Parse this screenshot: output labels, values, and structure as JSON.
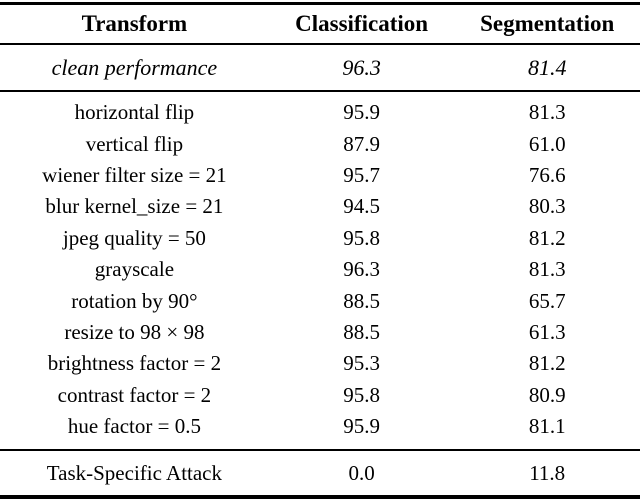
{
  "table": {
    "headers": {
      "transform": "Transform",
      "classification": "Classification",
      "segmentation": "Segmentation"
    },
    "clean_row": {
      "transform": "clean performance",
      "classification": "96.3",
      "segmentation": "81.4"
    },
    "rows": [
      {
        "transform": "horizontal flip",
        "classification": "95.9",
        "segmentation": "81.3"
      },
      {
        "transform": "vertical flip",
        "classification": "87.9",
        "segmentation": "61.0"
      },
      {
        "transform": "wiener filter size = 21",
        "classification": "95.7",
        "segmentation": "76.6"
      },
      {
        "transform": "blur kernel_size = 21",
        "classification": "94.5",
        "segmentation": "80.3"
      },
      {
        "transform": "jpeg quality = 50",
        "classification": "95.8",
        "segmentation": "81.2"
      },
      {
        "transform": "grayscale",
        "classification": "96.3",
        "segmentation": "81.3"
      },
      {
        "transform": "rotation by 90°",
        "classification": "88.5",
        "segmentation": "65.7"
      },
      {
        "transform": "resize to 98 × 98",
        "classification": "88.5",
        "segmentation": "61.3"
      },
      {
        "transform": "brightness factor = 2",
        "classification": "95.3",
        "segmentation": "81.2"
      },
      {
        "transform": "contrast factor = 2",
        "classification": "95.8",
        "segmentation": "80.9"
      },
      {
        "transform": "hue factor = 0.5",
        "classification": "95.9",
        "segmentation": "81.1"
      }
    ],
    "attack_row": {
      "transform": "Task-Specific Attack",
      "classification": "0.0",
      "segmentation": "11.8"
    }
  },
  "colors": {
    "text": "#000000",
    "background": "#ffffff",
    "rule": "#000000"
  }
}
